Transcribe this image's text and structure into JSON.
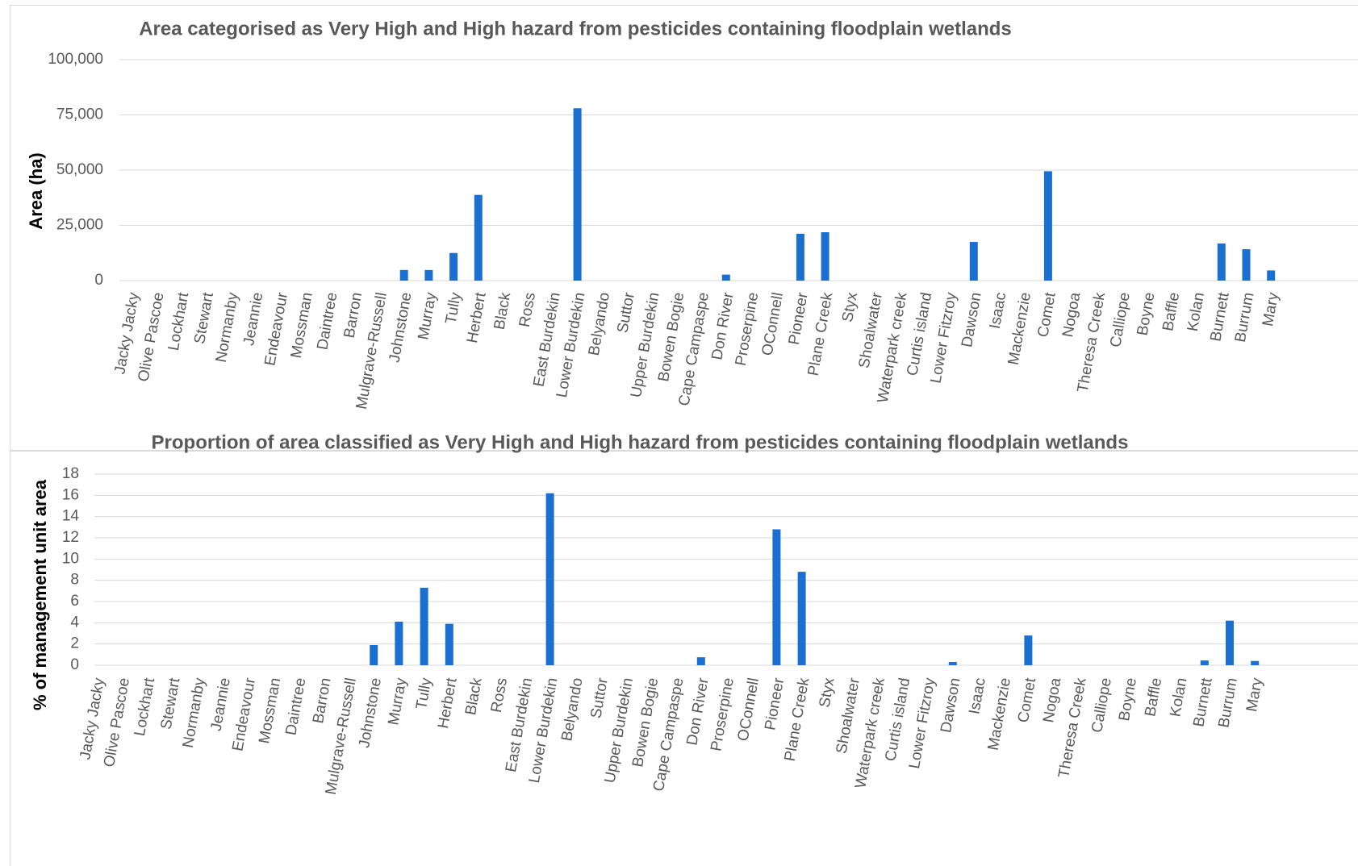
{
  "chart_data": [
    {
      "type": "bar",
      "title": "Area categorised as Very High and High hazard from pesticides containing floodplain wetlands",
      "xlabel": "",
      "ylabel": "Area (ha)",
      "ylim": [
        0,
        100000
      ],
      "yticks": [
        0,
        25000,
        50000,
        75000,
        100000
      ],
      "ytick_labels": [
        "0",
        "25,000",
        "50,000",
        "75,000",
        "100,000"
      ],
      "grid": true,
      "legend": "none",
      "color": "#1a6fd1",
      "categories": [
        "Jacky Jacky",
        "Olive Pascoe",
        "Lockhart",
        "Stewart",
        "Normanby",
        "Jeannie",
        "Endeavour",
        "Mossman",
        "Daintree",
        "Barron",
        "Mulgrave-Russell",
        "Johnstone",
        "Murray",
        "Tully",
        "Herbert",
        "Black",
        "Ross",
        "East Burdekin",
        "Lower Burdekin",
        "Belyando",
        "Suttor",
        "Upper Burdekin",
        "Bowen Bogie",
        "Cape Campaspe",
        "Don River",
        "Proserpine",
        "OConnell",
        "Pioneer",
        "Plane Creek",
        "Styx",
        "Shoalwater",
        "Waterpark creek",
        "Curtis island",
        "Lower Fitzroy",
        "Dawson",
        "Isaac",
        "Mackenzie",
        "Comet",
        "Nogoa",
        "Theresa Creek",
        "Calliope",
        "Boyne",
        "Baffle",
        "Kolan",
        "Burnett",
        "Burrum",
        "Mary"
      ],
      "values": [
        0,
        0,
        0,
        0,
        0,
        0,
        0,
        0,
        0,
        0,
        0,
        4800,
        4800,
        12500,
        38800,
        0,
        0,
        0,
        78000,
        0,
        0,
        0,
        0,
        0,
        2700,
        0,
        0,
        21200,
        21900,
        0,
        0,
        0,
        0,
        0,
        17500,
        0,
        0,
        49500,
        0,
        0,
        0,
        0,
        0,
        0,
        16800,
        14200,
        4600
      ]
    },
    {
      "type": "bar",
      "title": "Proportion of area classified as Very High and High hazard from pesticides containing floodplain wetlands",
      "xlabel": "",
      "ylabel": "% of management unit area",
      "ylim": [
        0,
        18
      ],
      "yticks": [
        0,
        2,
        4,
        6,
        8,
        10,
        12,
        14,
        16,
        18
      ],
      "ytick_labels": [
        "0",
        "2",
        "4",
        "6",
        "8",
        "10",
        "12",
        "14",
        "16",
        "18"
      ],
      "grid": true,
      "legend": "none",
      "color": "#1a6fd1",
      "categories": [
        "Jacky Jacky",
        "Olive Pascoe",
        "Lockhart",
        "Stewart",
        "Normanby",
        "Jeannie",
        "Endeavour",
        "Mossman",
        "Daintree",
        "Barron",
        "Mulgrave-Russell",
        "Johnstone",
        "Murray",
        "Tully",
        "Herbert",
        "Black",
        "Ross",
        "East Burdekin",
        "Lower Burdekin",
        "Belyando",
        "Suttor",
        "Upper Burdekin",
        "Bowen Bogie",
        "Cape Campaspe",
        "Don River",
        "Proserpine",
        "OConnell",
        "Pioneer",
        "Plane Creek",
        "Styx",
        "Shoalwater",
        "Waterpark creek",
        "Curtis island",
        "Lower Fitzroy",
        "Dawson",
        "Isaac",
        "Mackenzie",
        "Comet",
        "Nogoa",
        "Theresa Creek",
        "Calliope",
        "Boyne",
        "Baffle",
        "Kolan",
        "Burnett",
        "Burrum",
        "Mary"
      ],
      "values": [
        0,
        0,
        0,
        0,
        0,
        0,
        0,
        0,
        0,
        0,
        0,
        1.9,
        4.1,
        7.3,
        3.9,
        0,
        0,
        0,
        16.2,
        0,
        0,
        0,
        0,
        0,
        0.75,
        0,
        0,
        12.8,
        8.8,
        0,
        0,
        0,
        0,
        0,
        0.3,
        0,
        0,
        2.8,
        0,
        0,
        0,
        0,
        0,
        0,
        0.45,
        4.2,
        0.4
      ]
    }
  ]
}
